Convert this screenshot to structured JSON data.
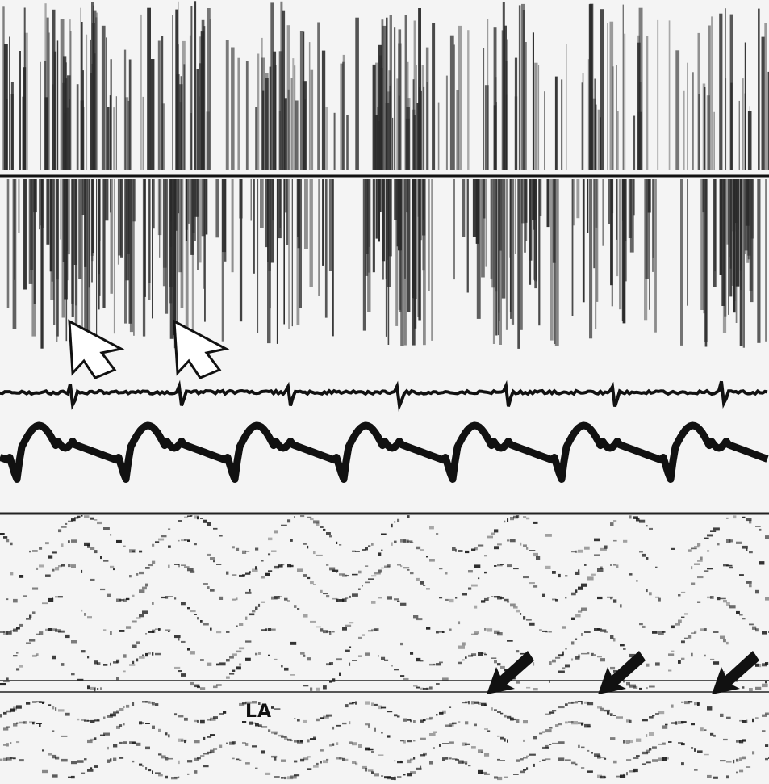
{
  "figure": {
    "label_la": "LA",
    "colors": {
      "background": "#f4f4f4",
      "ink": "#111111",
      "speckle": "#2a2a2a",
      "arrow_fill_solid": "#111111",
      "arrow_fill_open": "#ffffff"
    },
    "annotations": {
      "open_arrows": 2,
      "solid_arrows": 3
    },
    "panels": [
      "doppler-spectrum-upper",
      "doppler-spectrum-lower",
      "ecg-trace",
      "pressure-trace",
      "m-mode-echo"
    ]
  }
}
